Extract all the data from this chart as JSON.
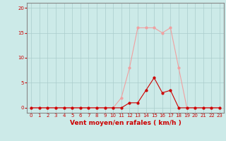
{
  "xlabel": "Vent moyen/en rafales ( km/h )",
  "bg_color": "#cceae8",
  "grid_color": "#aacccc",
  "x_ticks": [
    0,
    1,
    2,
    3,
    4,
    5,
    6,
    7,
    8,
    9,
    10,
    11,
    12,
    13,
    14,
    15,
    16,
    17,
    18,
    19,
    20,
    21,
    22,
    23
  ],
  "xlim": [
    -0.5,
    23.5
  ],
  "ylim": [
    -1,
    21
  ],
  "y_ticks": [
    0,
    5,
    10,
    15,
    20
  ],
  "rafales_x": [
    0,
    1,
    2,
    3,
    4,
    5,
    6,
    7,
    8,
    9,
    10,
    11,
    12,
    13,
    14,
    15,
    16,
    17,
    18,
    19,
    20,
    21,
    22,
    23
  ],
  "rafales_y": [
    0,
    0,
    0,
    0,
    0,
    0,
    0,
    0,
    0,
    0,
    0,
    2,
    8,
    16,
    16,
    16,
    15,
    16,
    8,
    0,
    0,
    0,
    0,
    0
  ],
  "moyen_x": [
    0,
    1,
    2,
    3,
    4,
    5,
    6,
    7,
    8,
    9,
    10,
    11,
    12,
    13,
    14,
    15,
    16,
    17,
    18,
    19,
    20,
    21,
    22,
    23
  ],
  "moyen_y": [
    0,
    0,
    0,
    0,
    0,
    0,
    0,
    0,
    0,
    0,
    0,
    0,
    1,
    1,
    3.5,
    6,
    3,
    3.5,
    0,
    0,
    0,
    0,
    0,
    0
  ],
  "rafales_color": "#f0a0a0",
  "moyen_color": "#cc0000",
  "marker_size": 2,
  "linewidth": 0.8,
  "tick_fontsize": 5,
  "label_fontsize": 6.5,
  "tick_color": "#cc0000",
  "label_color": "#cc0000",
  "spine_color": "#888888"
}
